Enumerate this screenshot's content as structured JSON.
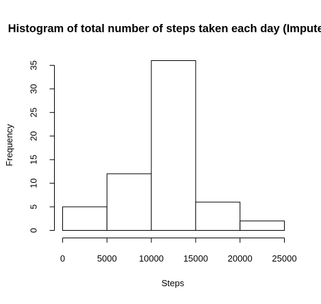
{
  "chart_data": {
    "type": "bar",
    "title": "Histogram of total number of steps taken each day (Imputed)",
    "xlabel": "Steps",
    "ylabel": "Frequency",
    "bins": [
      {
        "from": 0,
        "to": 5000,
        "count": 5
      },
      {
        "from": 5000,
        "to": 10000,
        "count": 12
      },
      {
        "from": 10000,
        "to": 15000,
        "count": 36
      },
      {
        "from": 15000,
        "to": 20000,
        "count": 6
      },
      {
        "from": 20000,
        "to": 25000,
        "count": 2
      }
    ],
    "xticks": [
      0,
      5000,
      10000,
      15000,
      20000,
      25000
    ],
    "yticks": [
      0,
      5,
      10,
      15,
      20,
      25,
      30,
      35
    ],
    "xlim": [
      0,
      25000
    ],
    "ylim": [
      0,
      36
    ],
    "bar_fill": "#ffffff",
    "bar_stroke": "#000000",
    "grid": false
  }
}
